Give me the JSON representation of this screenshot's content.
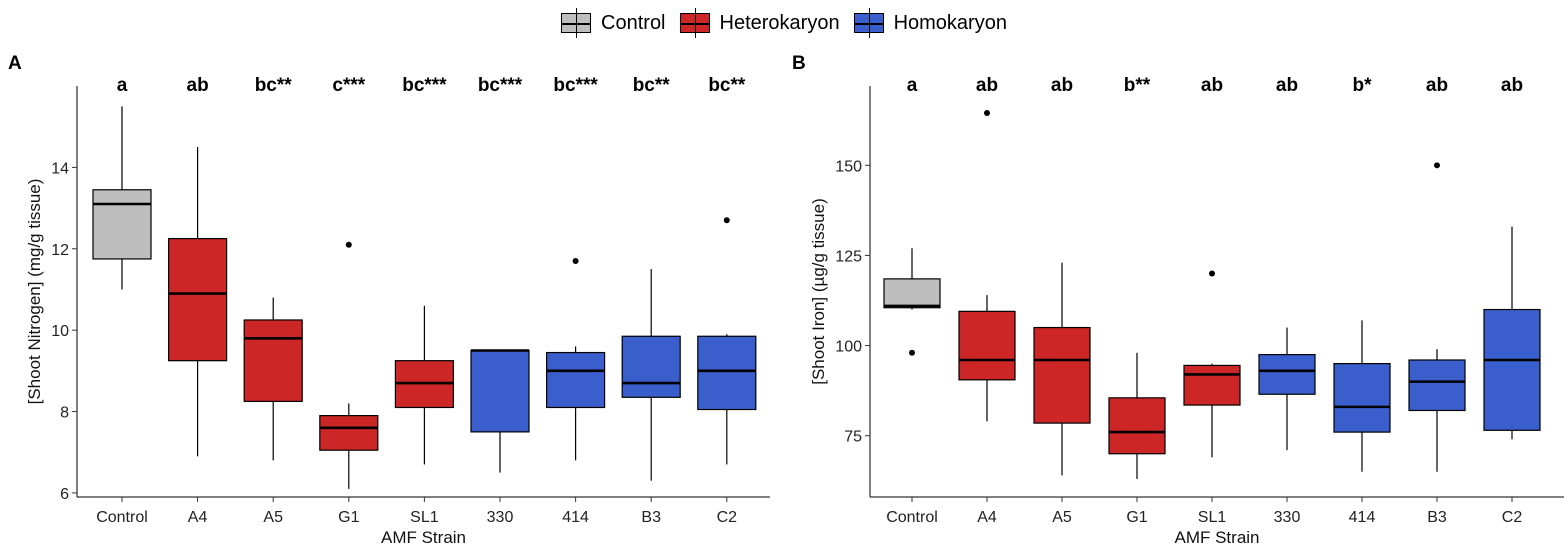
{
  "legend": {
    "items": [
      {
        "label": "Control",
        "color": "#BEBEBE"
      },
      {
        "label": "Heterokaryon",
        "color": "#CD2626"
      },
      {
        "label": "Homokaryon",
        "color": "#3A5FCD"
      }
    ]
  },
  "chart_data": [
    {
      "type": "box",
      "panel_label": "A",
      "xlabel": "AMF Strain",
      "ylabel": "[Shoot Nitrogen] (mg/g tissue)",
      "ylim": [
        5.9,
        16.0
      ],
      "yticks": [
        6,
        8,
        10,
        12,
        14
      ],
      "ytick_labels": [
        "6",
        "8",
        "10",
        "12",
        "14"
      ],
      "categories": [
        "Control",
        "A4",
        "A5",
        "G1",
        "SL1",
        "330",
        "414",
        "B3",
        "C2"
      ],
      "groups": [
        "Control",
        "Heterokaryon",
        "Heterokaryon",
        "Heterokaryon",
        "Heterokaryon",
        "Homokaryon",
        "Homokaryon",
        "Homokaryon",
        "Homokaryon"
      ],
      "boxes": [
        {
          "min": 11.0,
          "q1": 11.75,
          "median": 13.1,
          "q3": 13.45,
          "max": 15.5,
          "outliers": []
        },
        {
          "min": 6.9,
          "q1": 9.25,
          "median": 10.9,
          "q3": 12.25,
          "max": 14.5,
          "outliers": []
        },
        {
          "min": 6.8,
          "q1": 8.25,
          "median": 9.8,
          "q3": 10.25,
          "max": 10.8,
          "outliers": []
        },
        {
          "min": 6.1,
          "q1": 7.05,
          "median": 7.6,
          "q3": 7.9,
          "max": 8.2,
          "outliers": [
            12.1
          ]
        },
        {
          "min": 6.7,
          "q1": 8.1,
          "median": 8.7,
          "q3": 9.25,
          "max": 10.6,
          "outliers": []
        },
        {
          "min": 6.5,
          "q1": 7.5,
          "median": 9.5,
          "q3": 9.5,
          "max": 9.5,
          "outliers": []
        },
        {
          "min": 6.8,
          "q1": 8.1,
          "median": 9.0,
          "q3": 9.45,
          "max": 9.6,
          "outliers": [
            11.7
          ]
        },
        {
          "min": 6.3,
          "q1": 8.35,
          "median": 8.7,
          "q3": 9.85,
          "max": 11.5,
          "outliers": []
        },
        {
          "min": 6.7,
          "q1": 8.05,
          "median": 9.0,
          "q3": 9.85,
          "max": 9.9,
          "outliers": [
            12.7
          ]
        }
      ],
      "annotations": [
        "a",
        "ab",
        "bc**",
        "c***",
        "bc***",
        "bc***",
        "bc***",
        "bc**",
        "bc**"
      ]
    },
    {
      "type": "box",
      "panel_label": "B",
      "xlabel": "AMF Strain",
      "ylabel": "[Shoot Iron] (µg/g tissue)",
      "ylim": [
        58,
        172
      ],
      "yticks": [
        75,
        100,
        125,
        150
      ],
      "ytick_labels": [
        "75",
        "100",
        "125",
        "150"
      ],
      "categories": [
        "Control",
        "A4",
        "A5",
        "G1",
        "SL1",
        "330",
        "414",
        "B3",
        "C2"
      ],
      "groups": [
        "Control",
        "Heterokaryon",
        "Heterokaryon",
        "Heterokaryon",
        "Heterokaryon",
        "Homokaryon",
        "Homokaryon",
        "Homokaryon",
        "Homokaryon"
      ],
      "boxes": [
        {
          "min": 110,
          "q1": 110.5,
          "median": 111,
          "q3": 118.5,
          "max": 127,
          "outliers": [
            98
          ]
        },
        {
          "min": 79,
          "q1": 90.5,
          "median": 96,
          "q3": 109.5,
          "max": 114,
          "outliers": [
            164.5
          ]
        },
        {
          "min": 64,
          "q1": 78.5,
          "median": 96,
          "q3": 105,
          "max": 123,
          "outliers": []
        },
        {
          "min": 63,
          "q1": 70,
          "median": 76,
          "q3": 85.5,
          "max": 98,
          "outliers": []
        },
        {
          "min": 69,
          "q1": 83.5,
          "median": 92,
          "q3": 94.5,
          "max": 95,
          "outliers": [
            120
          ]
        },
        {
          "min": 71,
          "q1": 86.5,
          "median": 93,
          "q3": 97.5,
          "max": 105,
          "outliers": []
        },
        {
          "min": 65,
          "q1": 76,
          "median": 83,
          "q3": 95,
          "max": 107,
          "outliers": []
        },
        {
          "min": 65,
          "q1": 82,
          "median": 90,
          "q3": 96,
          "max": 99,
          "outliers": [
            150
          ]
        },
        {
          "min": 74,
          "q1": 76.5,
          "median": 96,
          "q3": 110,
          "max": 133,
          "outliers": []
        }
      ],
      "annotations": [
        "a",
        "ab",
        "ab",
        "b**",
        "ab",
        "ab",
        "b*",
        "ab",
        "ab"
      ]
    }
  ]
}
